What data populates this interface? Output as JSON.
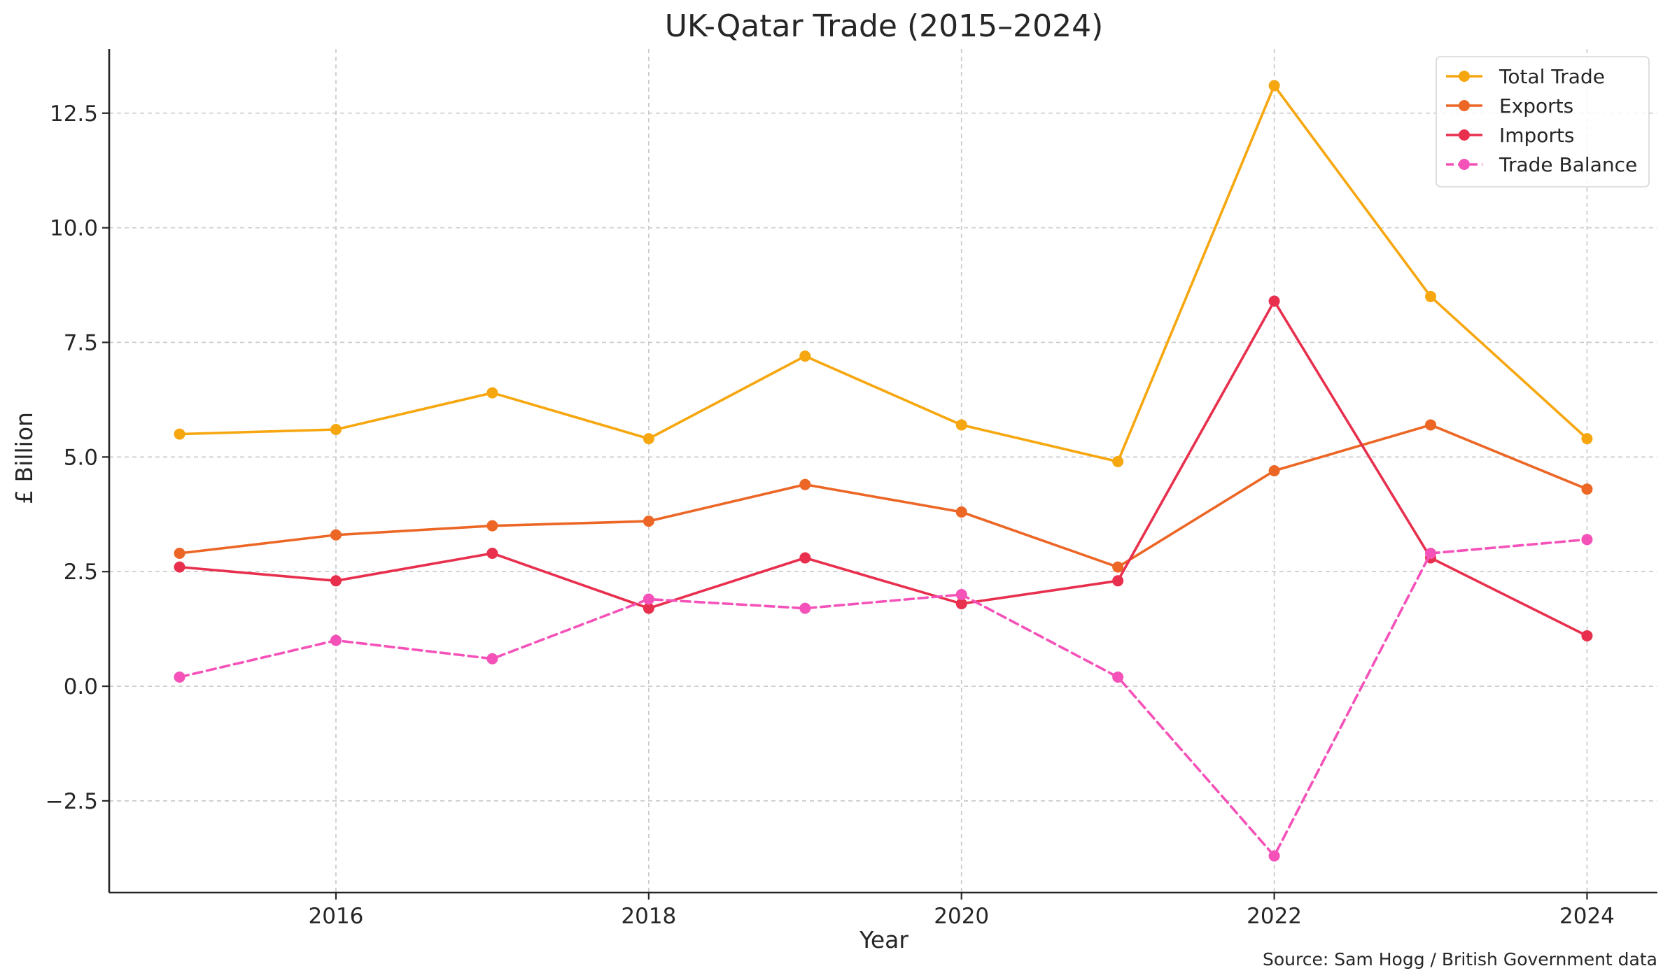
{
  "chart_data": {
    "type": "line",
    "title": "UK-Qatar Trade (2015–2024)",
    "xlabel": "Year",
    "ylabel": "£ Billion",
    "x": [
      2015,
      2016,
      2017,
      2018,
      2019,
      2020,
      2021,
      2022,
      2023,
      2024
    ],
    "xlim": [
      2014.55,
      2024.45
    ],
    "ylim": [
      -4.5,
      13.9
    ],
    "x_ticks": [
      2016,
      2018,
      2020,
      2022,
      2024
    ],
    "x_tick_labels": [
      "2016",
      "2018",
      "2020",
      "2022",
      "2024"
    ],
    "y_ticks": [
      -2.5,
      0,
      2.5,
      5,
      7.5,
      10,
      12.5
    ],
    "y_tick_labels": [
      "−2.5",
      "0.0",
      "2.5",
      "5.0",
      "7.5",
      "10.0",
      "12.5"
    ],
    "grid": true,
    "legend_position": "top-right",
    "series": [
      {
        "name": "Total Trade",
        "color": "#F6A70F",
        "dashed": false,
        "values": [
          5.5,
          5.6,
          6.4,
          5.4,
          7.2,
          5.7,
          4.9,
          13.1,
          8.5,
          5.4
        ]
      },
      {
        "name": "Exports",
        "color": "#EC6625",
        "dashed": false,
        "values": [
          2.9,
          3.3,
          3.5,
          3.6,
          4.4,
          3.8,
          2.6,
          4.7,
          5.7,
          4.3
        ]
      },
      {
        "name": "Imports",
        "color": "#E8304E",
        "dashed": false,
        "values": [
          2.6,
          2.3,
          2.9,
          1.7,
          2.8,
          1.8,
          2.3,
          8.4,
          2.8,
          1.1
        ]
      },
      {
        "name": "Trade Balance",
        "color": "#F452B9",
        "dashed": true,
        "values": [
          0.2,
          1.0,
          0.6,
          1.9,
          1.7,
          2.0,
          0.2,
          -3.7,
          2.9,
          3.2
        ]
      }
    ],
    "source_note": "Source: Sam Hogg / British Government data"
  }
}
